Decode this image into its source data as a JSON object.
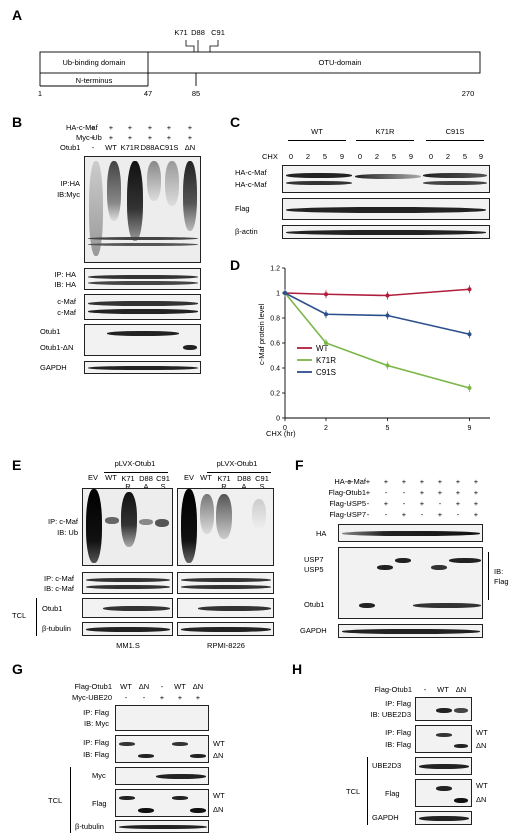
{
  "panels": {
    "A": {
      "letter": "A",
      "sites": [
        "K71",
        "D88",
        "C91"
      ],
      "domains": [
        "Ub-binding domain",
        "N-terminus",
        "OTU-domain"
      ],
      "positions": [
        "1",
        "47",
        "85",
        "270"
      ]
    },
    "B": {
      "letter": "B",
      "row_labels": [
        "HA-c-Maf",
        "Myc-Ub",
        "Otub1"
      ],
      "ha_row": [
        "+",
        "+",
        "+",
        "+",
        "+",
        "+"
      ],
      "myc_row": [
        "+",
        "+",
        "+",
        "+",
        "+",
        "+"
      ],
      "otub1_row": [
        "-",
        "WT",
        "K71R",
        "D88A",
        "C91S",
        "ΔN"
      ],
      "blot_labels": [
        "IP:HA",
        "IB:Myc",
        "IP: HA",
        "IB: HA",
        "c-Maf",
        "c-Maf",
        "Otub1",
        "Otub1-ΔN",
        "GAPDH"
      ]
    },
    "C": {
      "letter": "C",
      "groups": [
        "WT",
        "K71R",
        "C91S"
      ],
      "chx_label": "CHX",
      "times": [
        "0",
        "2",
        "5",
        "9",
        "0",
        "2",
        "5",
        "9",
        "0",
        "2",
        "5",
        "9"
      ],
      "blot_labels": [
        "HA-c-Maf",
        "HA-c-Maf",
        "Flag",
        "β-actin"
      ]
    },
    "D": {
      "letter": "D"
    },
    "E": {
      "letter": "E",
      "headers": [
        "pLVX-Otub1",
        "pLVX-Otub1"
      ],
      "lanes_left": [
        "EV",
        "WT",
        "K71\nR",
        "D88\nA",
        "C91\nS"
      ],
      "lanes_right": [
        "EV",
        "WT",
        "K71\nR",
        "D88\nA",
        "C91\nS"
      ],
      "blot_labels": [
        "IP: c-Maf",
        "IB: Ub",
        "IP: c-Maf",
        "IB: c-Maf",
        "Otub1",
        "β-tubulin"
      ],
      "tcl": "TCL",
      "cells": [
        "MM1.S",
        "RPMI-8226"
      ]
    },
    "F": {
      "letter": "F",
      "row_labels": [
        "HA-c-Maf",
        "Flag-Otub1",
        "Flag-USP5",
        "Flag-USP7"
      ],
      "rows": [
        [
          "+",
          "+",
          "+",
          "+",
          "+",
          "+",
          "+",
          "+"
        ],
        [
          "-",
          "+",
          "-",
          "-",
          "+",
          "+",
          "+",
          "+"
        ],
        [
          "-",
          "-",
          "+",
          "-",
          "+",
          "-",
          "+",
          "+"
        ],
        [
          "-",
          "-",
          "-",
          "+",
          "-",
          "+",
          "-",
          "+"
        ]
      ],
      "blot_labels": [
        "HA",
        "USP7",
        "USP5",
        "Otub1",
        "GAPDH",
        "IB:",
        "Flag"
      ]
    },
    "G": {
      "letter": "G",
      "row_labels": [
        "Flag-Otub1",
        "Myc-UBE20"
      ],
      "rows": [
        [
          "WT",
          "ΔN",
          "-",
          "WT",
          "ΔN"
        ],
        [
          "-",
          "-",
          "+",
          "+",
          "+"
        ]
      ],
      "blot_labels": [
        "IP: Flag",
        "IB: Myc",
        "IP: Flag",
        "IB: Flag",
        "Myc",
        "Flag",
        "β-tubulin",
        "TCL"
      ],
      "arrows": [
        "WT",
        "ΔN",
        "WT",
        "ΔN"
      ]
    },
    "H": {
      "letter": "H",
      "row_labels": [
        "Flag-Otub1"
      ],
      "row": [
        "-",
        "WT",
        "ΔN"
      ],
      "blot_labels": [
        "IP: Flag",
        "IB: UBE2D3",
        "IP: Flag",
        "IB: Flag",
        "UBE2D3",
        "Flag",
        "GAPDH",
        "TCL"
      ],
      "arrows": [
        "WT",
        "ΔN",
        "WT",
        "ΔN"
      ]
    }
  },
  "chart_data": {
    "type": "line",
    "title": "",
    "xlabel": "CHX (hr)",
    "ylabel": "c-Maf protein level",
    "x": [
      0,
      2,
      5,
      9
    ],
    "xticks": [
      "0",
      "2",
      "5",
      "9"
    ],
    "ylim": [
      0,
      1.2
    ],
    "yticks": [
      "0",
      "0.2",
      "0.4",
      "0.6",
      "0.8",
      "1",
      "1.2"
    ],
    "legend_position": "left-bottom",
    "series": [
      {
        "name": "WT",
        "values": [
          1.0,
          0.99,
          0.98,
          1.03
        ],
        "color": "#b01e3c"
      },
      {
        "name": "K71R",
        "values": [
          1.0,
          0.6,
          0.42,
          0.24
        ],
        "color": "#7ab648"
      },
      {
        "name": "C91S",
        "values": [
          1.0,
          0.83,
          0.82,
          0.67
        ],
        "color": "#2b4f8c"
      }
    ]
  }
}
